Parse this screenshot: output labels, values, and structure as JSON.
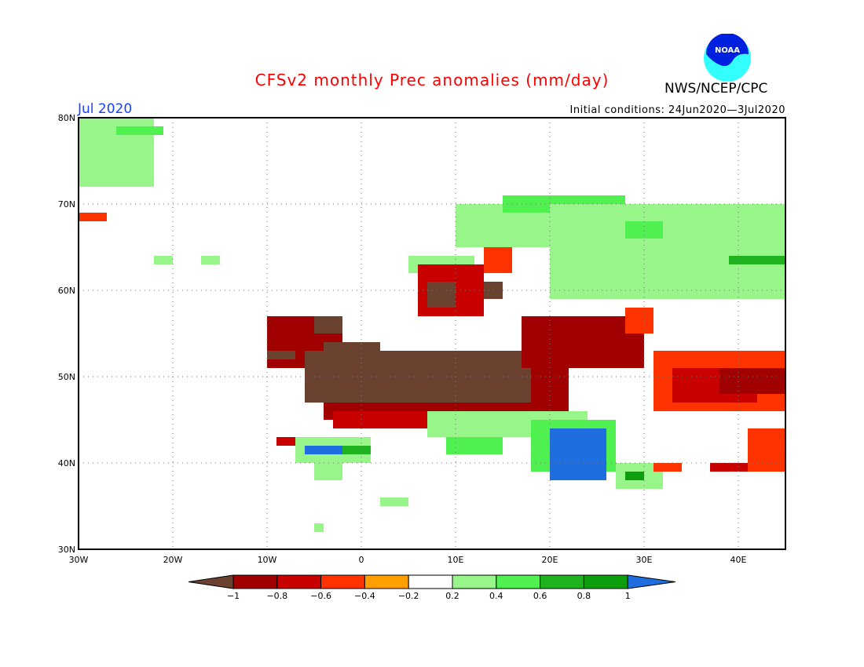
{
  "header": {
    "title": "CFSv2 monthly Prec anomalies (mm/day)",
    "agency": "NWS/NCEP/CPC",
    "logo_text": "NOAA",
    "month": "Jul 2020",
    "initial_conditions": "Initial conditions: 24Jun2020—3Jul2020"
  },
  "chart_data": {
    "type": "heatmap",
    "title": "CFSv2 monthly Prec anomalies (mm/day)",
    "lon_range": [
      -30,
      45
    ],
    "lat_range": [
      30,
      80
    ],
    "grid": true,
    "x_ticks": [
      "30W",
      "20W",
      "10W",
      "0",
      "10E",
      "20E",
      "30E",
      "40E"
    ],
    "y_ticks": [
      "80N",
      "70N",
      "60N",
      "50N",
      "40N",
      "30N"
    ],
    "colorbar": {
      "labels": [
        "−1",
        "−0.8",
        "−0.6",
        "−0.4",
        "−0.2",
        "0.2",
        "0.4",
        "0.6",
        "0.8",
        "1"
      ],
      "colors": [
        "#6b4230",
        "#a00000",
        "#c80000",
        "#ff3300",
        "#ff9f00",
        "#ffffff",
        "#98f58a",
        "#4ff04f",
        "#1fb41f",
        "#0d9e0d",
        "#1e6ee0"
      ]
    },
    "regions": [
      {
        "lon": [
          -30,
          -22
        ],
        "lat": [
          72,
          80
        ],
        "class": 6
      },
      {
        "lon": [
          -26,
          -21
        ],
        "lat": [
          78,
          79
        ],
        "class": 7
      },
      {
        "lon": [
          -30,
          -27
        ],
        "lat": [
          68,
          69
        ],
        "class": 3
      },
      {
        "lon": [
          -22,
          -20
        ],
        "lat": [
          63,
          64
        ],
        "class": 6
      },
      {
        "lon": [
          -17,
          -15
        ],
        "lat": [
          63,
          64
        ],
        "class": 6
      },
      {
        "lon": [
          5,
          12
        ],
        "lat": [
          62,
          64
        ],
        "class": 6
      },
      {
        "lon": [
          10,
          20
        ],
        "lat": [
          65,
          70
        ],
        "class": 6
      },
      {
        "lon": [
          15,
          28
        ],
        "lat": [
          69,
          71
        ],
        "class": 7
      },
      {
        "lon": [
          20,
          45
        ],
        "lat": [
          59,
          70
        ],
        "class": 6
      },
      {
        "lon": [
          28,
          32
        ],
        "lat": [
          66,
          68
        ],
        "class": 7
      },
      {
        "lon": [
          39,
          45
        ],
        "lat": [
          63,
          64
        ],
        "class": 8
      },
      {
        "lon": [
          13,
          16
        ],
        "lat": [
          62,
          65
        ],
        "class": 3
      },
      {
        "lon": [
          6,
          13
        ],
        "lat": [
          57,
          63
        ],
        "class": 2
      },
      {
        "lon": [
          7,
          10
        ],
        "lat": [
          58,
          61
        ],
        "class": 0
      },
      {
        "lon": [
          13,
          15
        ],
        "lat": [
          59,
          61
        ],
        "class": 0
      },
      {
        "lon": [
          -10,
          -2
        ],
        "lat": [
          51,
          57
        ],
        "class": 1
      },
      {
        "lon": [
          -5,
          -2
        ],
        "lat": [
          55,
          57
        ],
        "class": 0
      },
      {
        "lon": [
          -4,
          2
        ],
        "lat": [
          51,
          54
        ],
        "class": 0
      },
      {
        "lon": [
          -10,
          -7
        ],
        "lat": [
          52,
          53
        ],
        "class": 0
      },
      {
        "lon": [
          -4,
          22
        ],
        "lat": [
          45,
          53
        ],
        "class": 1
      },
      {
        "lon": [
          -6,
          18
        ],
        "lat": [
          47,
          53
        ],
        "class": 0
      },
      {
        "lon": [
          17,
          30
        ],
        "lat": [
          51,
          57
        ],
        "class": 1
      },
      {
        "lon": [
          28,
          31
        ],
        "lat": [
          55,
          58
        ],
        "class": 3
      },
      {
        "lon": [
          31,
          45
        ],
        "lat": [
          46,
          53
        ],
        "class": 3
      },
      {
        "lon": [
          33,
          42
        ],
        "lat": [
          47,
          51
        ],
        "class": 2
      },
      {
        "lon": [
          38,
          45
        ],
        "lat": [
          48,
          51
        ],
        "class": 1
      },
      {
        "lon": [
          -3,
          13
        ],
        "lat": [
          44,
          46
        ],
        "class": 2
      },
      {
        "lon": [
          7,
          24
        ],
        "lat": [
          43,
          46
        ],
        "class": 6
      },
      {
        "lon": [
          18,
          27
        ],
        "lat": [
          39,
          45
        ],
        "class": 7
      },
      {
        "lon": [
          20,
          26
        ],
        "lat": [
          38,
          44
        ],
        "class": 10
      },
      {
        "lon": [
          27,
          32
        ],
        "lat": [
          37,
          40
        ],
        "class": 6
      },
      {
        "lon": [
          28,
          30
        ],
        "lat": [
          38,
          39
        ],
        "class": 9
      },
      {
        "lon": [
          9,
          15
        ],
        "lat": [
          41,
          43
        ],
        "class": 7
      },
      {
        "lon": [
          -9,
          -7
        ],
        "lat": [
          42,
          43
        ],
        "class": 2
      },
      {
        "lon": [
          -7,
          1
        ],
        "lat": [
          40,
          43
        ],
        "class": 6
      },
      {
        "lon": [
          -6,
          -2
        ],
        "lat": [
          41,
          42
        ],
        "class": 10
      },
      {
        "lon": [
          -2,
          1
        ],
        "lat": [
          41,
          42
        ],
        "class": 8
      },
      {
        "lon": [
          -5,
          -2
        ],
        "lat": [
          38,
          40
        ],
        "class": 6
      },
      {
        "lon": [
          31,
          34
        ],
        "lat": [
          39,
          40
        ],
        "class": 3
      },
      {
        "lon": [
          37,
          41
        ],
        "lat": [
          39,
          40
        ],
        "class": 2
      },
      {
        "lon": [
          41,
          45
        ],
        "lat": [
          39,
          44
        ],
        "class": 3
      },
      {
        "lon": [
          2,
          5
        ],
        "lat": [
          35,
          36
        ],
        "class": 6
      },
      {
        "lon": [
          -5,
          -4
        ],
        "lat": [
          32,
          33
        ],
        "class": 6
      }
    ]
  }
}
